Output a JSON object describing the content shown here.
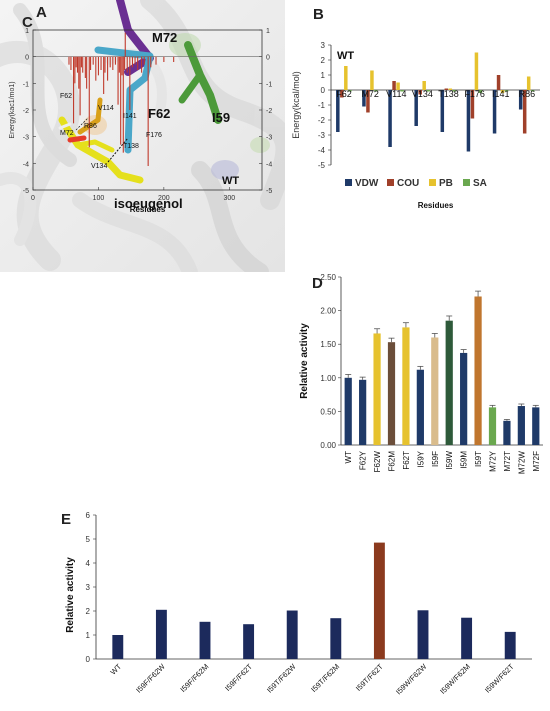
{
  "panels": {
    "A": {
      "label": "A",
      "chart_data": {
        "type": "bar",
        "title": "WT",
        "xlabel": "Residues",
        "ylabel": "Energy(kac1/mo1)",
        "xlim": [
          0,
          350
        ],
        "ylim": [
          -5,
          1
        ],
        "xticks": [
          0,
          100,
          200,
          300
        ],
        "yticks": [
          -5,
          -4,
          -3,
          -2,
          -1,
          0,
          1
        ],
        "series": [
          {
            "color": "#c0392b",
            "x": [
              55,
              58,
              62,
              64,
              66,
              68,
              70,
              72,
              74,
              76,
              80,
              82,
              86,
              88,
              92,
              96,
              100,
              104,
              108,
              110,
              114,
              118,
              122,
              126,
              130,
              132,
              134,
              136,
              138,
              140,
              141,
              144,
              148,
              152,
              156,
              160,
              166,
              170,
              176,
              180,
              188,
              200,
              215
            ],
            "values": [
              -0.3,
              -0.5,
              -2.5,
              -1.0,
              -0.4,
              -0.6,
              -1.2,
              -2.2,
              -0.4,
              -0.6,
              -0.8,
              -1.2,
              -3.4,
              -0.5,
              -0.3,
              -0.9,
              -0.7,
              -0.5,
              -1.4,
              -0.6,
              -0.9,
              -0.4,
              -0.5,
              -0.3,
              -1.8,
              -0.6,
              -3.3,
              -0.7,
              -3.6,
              -0.5,
              0.9,
              -0.6,
              -2.0,
              -0.4,
              -0.3,
              -0.5,
              -0.6,
              -0.3,
              -4.1,
              -0.4,
              -0.3,
              -0.2,
              -0.2
            ]
          }
        ],
        "annotations": [
          "F62",
          "M72",
          "R86",
          "V114",
          "I141",
          "V134",
          "T138",
          "F176"
        ]
      }
    },
    "B": {
      "label": "B",
      "chart_data": {
        "type": "bar",
        "title": "WT",
        "xlabel": "Residues",
        "ylabel": "Energy(kcal/mol)",
        "ylim": [
          -5,
          3
        ],
        "yticks": [
          -5,
          -4,
          -3,
          -2,
          -1,
          0,
          1,
          2,
          3
        ],
        "categories": [
          "F62",
          "M72",
          "V114",
          "V134",
          "T138",
          "F176",
          "I141",
          "R86"
        ],
        "series": [
          {
            "name": "VDW",
            "color": "#1f3a68",
            "values": [
              -2.8,
              -1.1,
              -3.8,
              -2.4,
              -2.8,
              -4.1,
              -2.9,
              -1.3
            ]
          },
          {
            "name": "COU",
            "color": "#a0402a",
            "values": [
              -0.5,
              -1.5,
              0.6,
              -0.3,
              0.1,
              -1.9,
              1.0,
              -2.9
            ]
          },
          {
            "name": "PB",
            "color": "#e6c22e",
            "values": [
              1.6,
              1.3,
              0.5,
              0.6,
              0.1,
              2.5,
              -0.2,
              0.9
            ]
          },
          {
            "name": "SA",
            "color": "#6aa84f",
            "values": [
              -0.1,
              -0.1,
              -0.1,
              -0.1,
              -0.1,
              -0.2,
              -0.1,
              -0.1
            ]
          }
        ]
      }
    },
    "C": {
      "label": "C",
      "labels": {
        "m72": "M72",
        "f62": "F62",
        "i59": "I59",
        "ligand": "isoeugenol"
      }
    },
    "D": {
      "label": "D",
      "chart_data": {
        "type": "bar",
        "ylabel": "Relative activity",
        "ylim": [
          0,
          2.5
        ],
        "yticks": [
          "0.00",
          "0.50",
          "1.00",
          "1.50",
          "2.00",
          "2.50"
        ],
        "categories": [
          "WT",
          "F62Y",
          "F62W",
          "F62M",
          "F62T",
          "I59Y",
          "I59F",
          "I59W",
          "I59M",
          "I59T",
          "M72Y",
          "M72T",
          "M72W",
          "M72F"
        ],
        "values": [
          1.0,
          0.97,
          1.66,
          1.53,
          1.75,
          1.12,
          1.6,
          1.85,
          1.37,
          2.21,
          0.56,
          0.36,
          0.58,
          0.56
        ],
        "errors": [
          0.05,
          0.04,
          0.07,
          0.06,
          0.07,
          0.05,
          0.06,
          0.07,
          0.05,
          0.08,
          0.03,
          0.02,
          0.03,
          0.03
        ],
        "colors": [
          "#1f3a68",
          "#1f3a68",
          "#e6c22e",
          "#6b4e3a",
          "#e6c22e",
          "#1f3a68",
          "#d9bc8c",
          "#2e5a3a",
          "#1f3a68",
          "#c0762e",
          "#6aa84f",
          "#1f3a68",
          "#1f3a68",
          "#1f3a68"
        ]
      }
    },
    "E": {
      "label": "E",
      "chart_data": {
        "type": "bar",
        "ylabel": "Relative activity",
        "ylim": [
          0,
          6
        ],
        "yticks": [
          0,
          1,
          2,
          3,
          4,
          5,
          6
        ],
        "categories": [
          "WT",
          "I59F/F62W",
          "I59F/F62M",
          "I59F/F62T",
          "I59T/F62W",
          "I59T/F62M",
          "I59T/F62T",
          "I59W/F62W",
          "I59W/F62M",
          "I59W/F62T"
        ],
        "values": [
          1.0,
          2.05,
          1.55,
          1.45,
          2.02,
          1.7,
          4.85,
          2.03,
          1.72,
          1.13
        ],
        "colors": [
          "#1c2a5c",
          "#1c2a5c",
          "#1c2a5c",
          "#1c2a5c",
          "#1c2a5c",
          "#1c2a5c",
          "#8b3a1e",
          "#1c2a5c",
          "#1c2a5c",
          "#1c2a5c"
        ]
      }
    }
  }
}
